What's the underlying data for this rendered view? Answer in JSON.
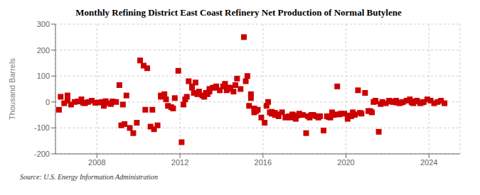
{
  "chart_data": {
    "type": "scatter",
    "title": "Monthly Refining District East Coast Refinery Net Production of Normal Butylene",
    "y_label": "Thousand Barrels",
    "annotation": "Source: U.S. Energy Information Administration",
    "color": "#cc0000",
    "marker": "square",
    "grid": true,
    "xlim": [
      2006.0,
      2025.5
    ],
    "xticks": [
      2008,
      2012,
      2016,
      2020,
      2024
    ],
    "ylim": [
      -200,
      300
    ],
    "yticks": [
      -200,
      -100,
      0,
      100,
      200,
      300
    ],
    "x": [
      2006.17,
      2006.25,
      2006.42,
      2006.58,
      2006.75,
      2006.92,
      2007.08,
      2007.25,
      2007.42,
      2007.58,
      2007.75,
      2007.92,
      2008.08,
      2008.25,
      2008.42,
      2008.58,
      2008.75,
      2008.92,
      2009.08,
      2009.25,
      2009.42,
      2009.58,
      2009.75,
      2009.92,
      2010.08,
      2010.25,
      2010.42,
      2010.58,
      2010.75,
      2010.92,
      2011.08,
      2011.25,
      2011.42,
      2011.58,
      2011.75,
      2011.92,
      2012.08,
      2012.25,
      2012.42,
      2012.58,
      2012.75,
      2012.92,
      2013.08,
      2013.25,
      2013.42,
      2013.58,
      2013.75,
      2013.92,
      2014.08,
      2014.25,
      2014.42,
      2014.58,
      2014.75,
      2014.92,
      2015.08,
      2015.25,
      2015.42,
      2015.58,
      2015.75,
      2015.92,
      2016.08,
      2016.25,
      2016.42,
      2016.58,
      2016.75,
      2016.92,
      2017.08,
      2017.25,
      2017.42,
      2017.58,
      2017.75,
      2017.92,
      2018.08,
      2018.25,
      2018.42,
      2018.58,
      2018.75,
      2018.92,
      2019.08,
      2019.25,
      2019.42,
      2019.58,
      2019.75,
      2019.92,
      2020.08,
      2020.25,
      2020.42,
      2020.58,
      2020.75,
      2020.92,
      2021.08,
      2021.25,
      2021.42,
      2021.58,
      2021.75,
      2021.92,
      2022.08,
      2022.25,
      2022.42,
      2022.58,
      2022.75,
      2022.92,
      2023.08,
      2023.25,
      2023.42,
      2023.58,
      2023.75,
      2023.92,
      2024.08,
      2024.25,
      2024.42,
      2024.58,
      2024.75,
      2006.58,
      2007.33,
      2008.67,
      2009.33,
      2010.67,
      2011.33,
      2011.67,
      2012.33,
      2012.67,
      2013.33,
      2013.67,
      2014.33,
      2014.67,
      2015.33,
      2015.67,
      2016.33,
      2016.67,
      2017.33,
      2017.67,
      2018.33,
      2018.67,
      2019.33,
      2019.67,
      2020.33,
      2020.67,
      2021.33,
      2021.67,
      2022.33,
      2022.67,
      2023.33,
      2023.67,
      2008.33,
      2009.17,
      2010.33,
      2011.08,
      2012.17,
      2012.58,
      2012.83,
      2013.17,
      2013.42,
      2014.17,
      2014.42,
      2015.17,
      2015.42,
      2015.58,
      2016.17,
      2016.42,
      2016.58,
      2017.17,
      2017.42,
      2018.17,
      2018.42,
      2019.17,
      2019.42,
      2020.17,
      2020.42,
      2021.17,
      2021.42,
      2022.17,
      2022.42,
      2023.17,
      2023.42
    ],
    "values": [
      -30,
      20,
      -5,
      5,
      -10,
      0,
      2,
      10,
      -5,
      0,
      5,
      -3,
      -2,
      0,
      3,
      -5,
      2,
      0,
      65,
      -10,
      25,
      -100,
      -120,
      -80,
      160,
      140,
      130,
      -95,
      -105,
      -90,
      20,
      30,
      -15,
      -20,
      15,
      120,
      -155,
      10,
      80,
      55,
      75,
      40,
      25,
      35,
      50,
      55,
      60,
      45,
      60,
      45,
      55,
      40,
      90,
      50,
      250,
      100,
      30,
      -40,
      -30,
      -60,
      -80,
      0,
      -45,
      -50,
      -55,
      -40,
      -60,
      -55,
      -50,
      -65,
      -45,
      -50,
      -120,
      -60,
      -50,
      -55,
      -55,
      -110,
      -55,
      -60,
      -50,
      60,
      -45,
      -45,
      -65,
      -55,
      -50,
      45,
      -45,
      35,
      -35,
      -40,
      5,
      -115,
      0,
      -5,
      5,
      0,
      5,
      -5,
      0,
      5,
      10,
      -5,
      5,
      -5,
      0,
      10,
      5,
      -5,
      0,
      5,
      -5,
      25,
      -3,
      -8,
      -85,
      -30,
      10,
      -25,
      20,
      35,
      30,
      55,
      55,
      65,
      -15,
      -35,
      -40,
      -48,
      -60,
      -52,
      -50,
      -60,
      -40,
      -48,
      -40,
      -42,
      0,
      -8,
      2,
      -2,
      2,
      -2,
      -15,
      -90,
      -30,
      25,
      -10,
      60,
      30,
      20,
      40,
      70,
      50,
      80,
      15,
      -25,
      -15,
      -38,
      -42,
      -58,
      -48,
      -55,
      -52,
      -58,
      -48,
      -52,
      -48,
      -35,
      2,
      2,
      -2,
      -2,
      4
    ]
  }
}
